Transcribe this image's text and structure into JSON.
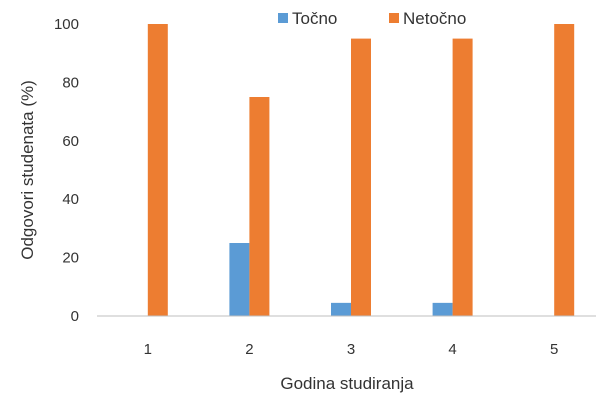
{
  "chart_data": {
    "type": "bar",
    "title": "",
    "xlabel": "Godina studiranja",
    "ylabel": "Odgovori studenata (%)",
    "categories": [
      "1",
      "2",
      "3",
      "4",
      "5"
    ],
    "ylim": [
      0,
      100
    ],
    "yticks": [
      "0",
      "20",
      "40",
      "60",
      "80",
      "100"
    ],
    "grid": false,
    "legend_position": "top",
    "series": [
      {
        "name": "Točno",
        "color": "#5B9BD5",
        "values": [
          0,
          25,
          4.5,
          4.5,
          0
        ]
      },
      {
        "name": "Netočno",
        "color": "#ED7D31",
        "values": [
          100,
          75,
          95,
          95,
          100
        ]
      }
    ]
  }
}
